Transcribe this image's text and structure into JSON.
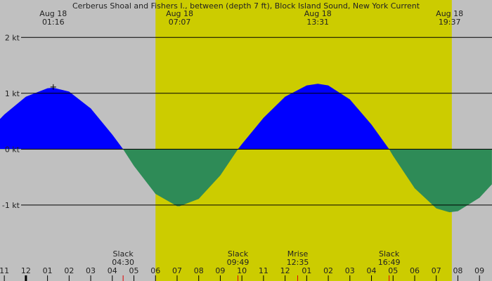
{
  "chart_data": {
    "type": "area",
    "title": "Cerberus Shoal and Fishers I., between (depth 7 ft), Block Island Sound, New York Current",
    "x": [
      -1.2,
      -1,
      0,
      1,
      1.267,
      2,
      3,
      4,
      4.5,
      5,
      6,
      7,
      7.117,
      8,
      9,
      9.817,
      10,
      11,
      12,
      13,
      13.517,
      14,
      15,
      16,
      16.817,
      17,
      18,
      19,
      19.617,
      20,
      21,
      21.575
    ],
    "series": [
      {
        "values": [
          0.54,
          0.62,
          0.94,
          1.09,
          1.1,
          1.03,
          0.73,
          0.26,
          0,
          -0.3,
          -0.8,
          -1.02,
          -1.02,
          -0.89,
          -0.47,
          0,
          0.09,
          0.56,
          0.94,
          1.14,
          1.17,
          1.14,
          0.89,
          0.44,
          0,
          -0.12,
          -0.7,
          -1.06,
          -1.13,
          -1.11,
          -0.87,
          -0.63
        ]
      }
    ],
    "flood_color": "#0000ff",
    "ebb_color": "#2e8b57",
    "background_color": "#c0c0c0",
    "daylight_color": "#cccc00",
    "daylight": [
      6.0,
      19.72
    ],
    "xlim": [
      -1.2,
      21.58
    ],
    "ylim": [
      -2.36,
      2.67
    ],
    "yticks": [
      {
        "value": 2,
        "label": "2 kt"
      },
      {
        "value": 1,
        "label": "1 kt"
      },
      {
        "value": 0,
        "label": "0 kt"
      },
      {
        "value": -1,
        "label": "-1 kt"
      }
    ],
    "xticks": [
      {
        "value": -1,
        "label": "11"
      },
      {
        "value": 0,
        "label": "12"
      },
      {
        "value": 1,
        "label": "01"
      },
      {
        "value": 2,
        "label": "02"
      },
      {
        "value": 3,
        "label": "03"
      },
      {
        "value": 4,
        "label": "04"
      },
      {
        "value": 5,
        "label": "05"
      },
      {
        "value": 6,
        "label": "06"
      },
      {
        "value": 7,
        "label": "07"
      },
      {
        "value": 8,
        "label": "08"
      },
      {
        "value": 9,
        "label": "09"
      },
      {
        "value": 10,
        "label": "10"
      },
      {
        "value": 11,
        "label": "11"
      },
      {
        "value": 12,
        "label": "12"
      },
      {
        "value": 13,
        "label": "01"
      },
      {
        "value": 14,
        "label": "02"
      },
      {
        "value": 15,
        "label": "03"
      },
      {
        "value": 16,
        "label": "04"
      },
      {
        "value": 17,
        "label": "05"
      },
      {
        "value": 18,
        "label": "06"
      },
      {
        "value": 19,
        "label": "07"
      },
      {
        "value": 20,
        "label": "08"
      },
      {
        "value": 21,
        "label": "09"
      }
    ],
    "top_labels": [
      {
        "date": "Aug 18",
        "time": "01:16"
      },
      {
        "date": "Aug 18",
        "time": "07:07"
      },
      {
        "date": "Aug 18",
        "time": "13:31"
      },
      {
        "date": "Aug 18",
        "time": "19:37"
      }
    ],
    "events": [
      {
        "name": "Slack",
        "time": "04:30"
      },
      {
        "name": "Slack",
        "time": "09:49"
      },
      {
        "name": "Mrise",
        "time": "12:35"
      },
      {
        "name": "Slack",
        "time": "16:49"
      }
    ]
  }
}
